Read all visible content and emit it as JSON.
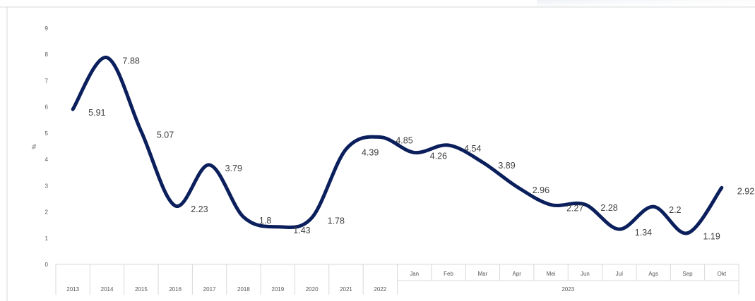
{
  "chart_data": {
    "type": "line",
    "title": "",
    "ylabel": "%",
    "xlabel": "",
    "ylim": [
      0,
      9
    ],
    "yticks": [
      "0",
      "1",
      "2",
      "3",
      "4",
      "5",
      "6",
      "7",
      "8",
      "9"
    ],
    "grid": false,
    "legend": "none",
    "line_color": "#0b1f5c",
    "categories": [
      "2013",
      "2014",
      "2015",
      "2016",
      "2017",
      "2018",
      "2019",
      "2020",
      "2021",
      "2022",
      "Jan",
      "Feb",
      "Mar",
      "Apr",
      "Mei",
      "Jun",
      "Jul",
      "Ags",
      "Sep",
      "Okt"
    ],
    "group_labels": [
      {
        "label": "2023",
        "from": 10,
        "to": 19
      }
    ],
    "values": [
      5.91,
      7.88,
      5.07,
      2.23,
      3.79,
      1.8,
      1.43,
      1.78,
      4.39,
      4.85,
      4.26,
      4.54,
      3.89,
      2.96,
      2.27,
      2.28,
      1.34,
      2.2,
      1.19,
      2.92
    ],
    "data_labels": [
      "5.91",
      "7.88",
      "5.07",
      "2.23",
      "3.79",
      "1.8",
      "1.43",
      "1.78",
      "4.39",
      "4.85",
      "4.26",
      "4.54",
      "3.89",
      "2.96",
      "2.27",
      "2.28",
      "1.34",
      "2.2",
      "1.19",
      "2.92"
    ]
  }
}
